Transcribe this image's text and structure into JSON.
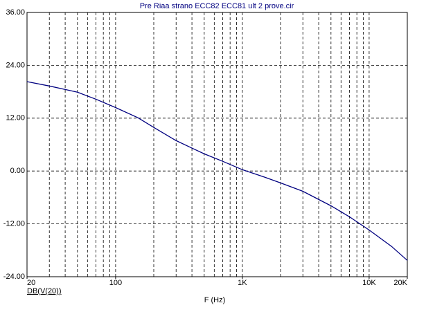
{
  "chart_data": {
    "type": "line",
    "title": "Pre Riaa strano ECC82 ECC81 ult 2 prove.cir",
    "xlabel": "F (Hz)",
    "xscale": "log",
    "xlim": [
      20,
      20000
    ],
    "xticks": [
      20,
      100,
      {
        "value": 1000,
        "label": "1K"
      },
      {
        "value": 10000,
        "label": "10K"
      },
      {
        "value": 20000,
        "label": "20K"
      }
    ],
    "xgrid": [
      30,
      40,
      50,
      60,
      70,
      80,
      90,
      100,
      200,
      300,
      400,
      500,
      600,
      700,
      800,
      900,
      1000,
      2000,
      3000,
      4000,
      5000,
      6000,
      7000,
      8000,
      9000,
      10000
    ],
    "ylim": [
      -24,
      36
    ],
    "yticks": [
      {
        "value": -24,
        "label": "-24.00"
      },
      {
        "value": -12,
        "label": "-12.00"
      },
      {
        "value": 0,
        "label": "0.00"
      },
      {
        "value": 12,
        "label": "12.00"
      },
      {
        "value": 24,
        "label": "24.00"
      },
      {
        "value": 36,
        "label": "36.00"
      }
    ],
    "grid": true,
    "x": [
      20,
      30,
      50,
      70,
      100,
      150,
      200,
      300,
      400,
      500,
      700,
      1000,
      1500,
      2000,
      3000,
      5000,
      7000,
      10000,
      15000,
      20000
    ],
    "series": [
      {
        "name": "DB(V(20))",
        "color": "#000080",
        "values": [
          20.3,
          19.3,
          17.9,
          16.3,
          14.4,
          12.1,
          9.9,
          6.9,
          5.2,
          3.9,
          2.2,
          0.3,
          -1.4,
          -2.7,
          -4.6,
          -7.9,
          -10.4,
          -13.4,
          -17.1,
          -20.3
        ]
      }
    ]
  }
}
